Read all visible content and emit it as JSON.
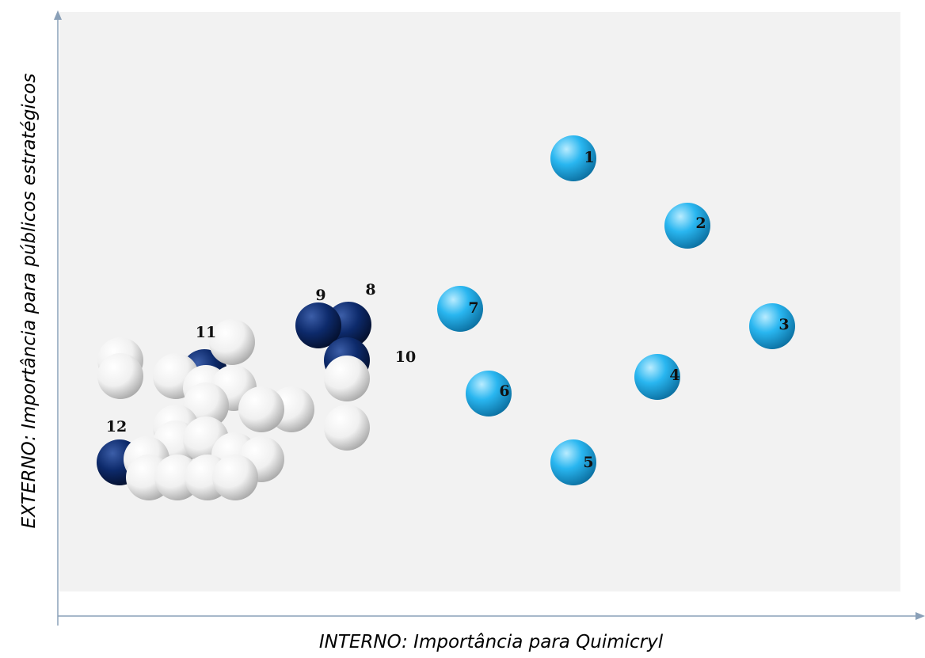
{
  "axes": {
    "x_label": "INTERNO: Importância para Quimicryl",
    "y_label": "EXTERNO: Importância para públicos estratégicos"
  },
  "colors": {
    "light": "#29b6f0",
    "dark": "#0d2a6b",
    "neutral": "#ffffff"
  },
  "points": [
    {
      "label": "1",
      "color": "light"
    },
    {
      "label": "2",
      "color": "light"
    },
    {
      "label": "3",
      "color": "light"
    },
    {
      "label": "4",
      "color": "light"
    },
    {
      "label": "5",
      "color": "light"
    },
    {
      "label": "6",
      "color": "light"
    },
    {
      "label": "7",
      "color": "light"
    },
    {
      "label": "8",
      "color": "dark"
    },
    {
      "label": "9",
      "color": "dark"
    },
    {
      "label": "10",
      "color": "dark"
    },
    {
      "label": "11",
      "color": "dark"
    },
    {
      "label": "12",
      "color": "dark"
    }
  ]
}
